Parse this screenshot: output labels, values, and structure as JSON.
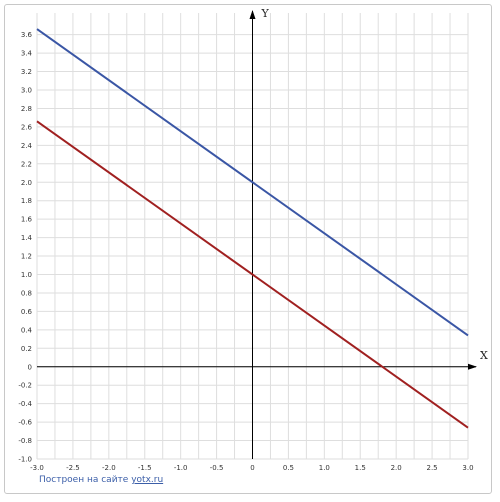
{
  "chart_data": {
    "type": "line",
    "xlabel": "X",
    "ylabel": "Y",
    "xlim": [
      -3.0,
      3.0
    ],
    "ylim": [
      -1.0,
      3.7
    ],
    "x_ticks": [
      -3.0,
      -2.5,
      -2.0,
      -1.5,
      -1.0,
      -0.5,
      0,
      0.5,
      1.0,
      1.5,
      2.0,
      2.5,
      3.0
    ],
    "x_tick_labels": [
      "-3.0",
      "-2.5",
      "-2.0",
      "-1.5",
      "-1.0",
      "-0.5",
      "0",
      "0.5",
      "1.0",
      "1.5",
      "2.0",
      "2.5",
      "3.0"
    ],
    "y_ticks": [
      -1.0,
      -0.8,
      -0.6,
      -0.4,
      -0.2,
      0,
      0.2,
      0.4,
      0.6,
      0.8,
      1.0,
      1.2,
      1.4,
      1.6,
      1.8,
      2.0,
      2.2,
      2.4,
      2.6,
      2.8,
      3.0,
      3.2,
      3.4,
      3.6
    ],
    "y_tick_labels": [
      "-1.0",
      "-0.8",
      "-0.6",
      "-0.4",
      "-0.2",
      "0",
      "0.2",
      "0.4",
      "0.6",
      "0.8",
      "1.0",
      "1.2",
      "1.4",
      "1.6",
      "1.8",
      "2.0",
      "2.2",
      "2.4",
      "2.6",
      "2.8",
      "3.0",
      "3.2",
      "3.4",
      "3.6"
    ],
    "grid": true,
    "series": [
      {
        "x": [
          -3.0,
          3.0
        ],
        "y": [
          3.66,
          0.34
        ],
        "color": "#3a56a5"
      },
      {
        "x": [
          -3.0,
          3.0
        ],
        "y": [
          2.66,
          -0.66
        ],
        "color": "#a02020"
      }
    ]
  },
  "footer": {
    "text": "Построен на сайте",
    "link": "yotx.ru"
  },
  "colors": {
    "grid": "#dedede",
    "axis": "#000000",
    "frame": "#c8c8c8",
    "footer": "#3b5ea8"
  }
}
